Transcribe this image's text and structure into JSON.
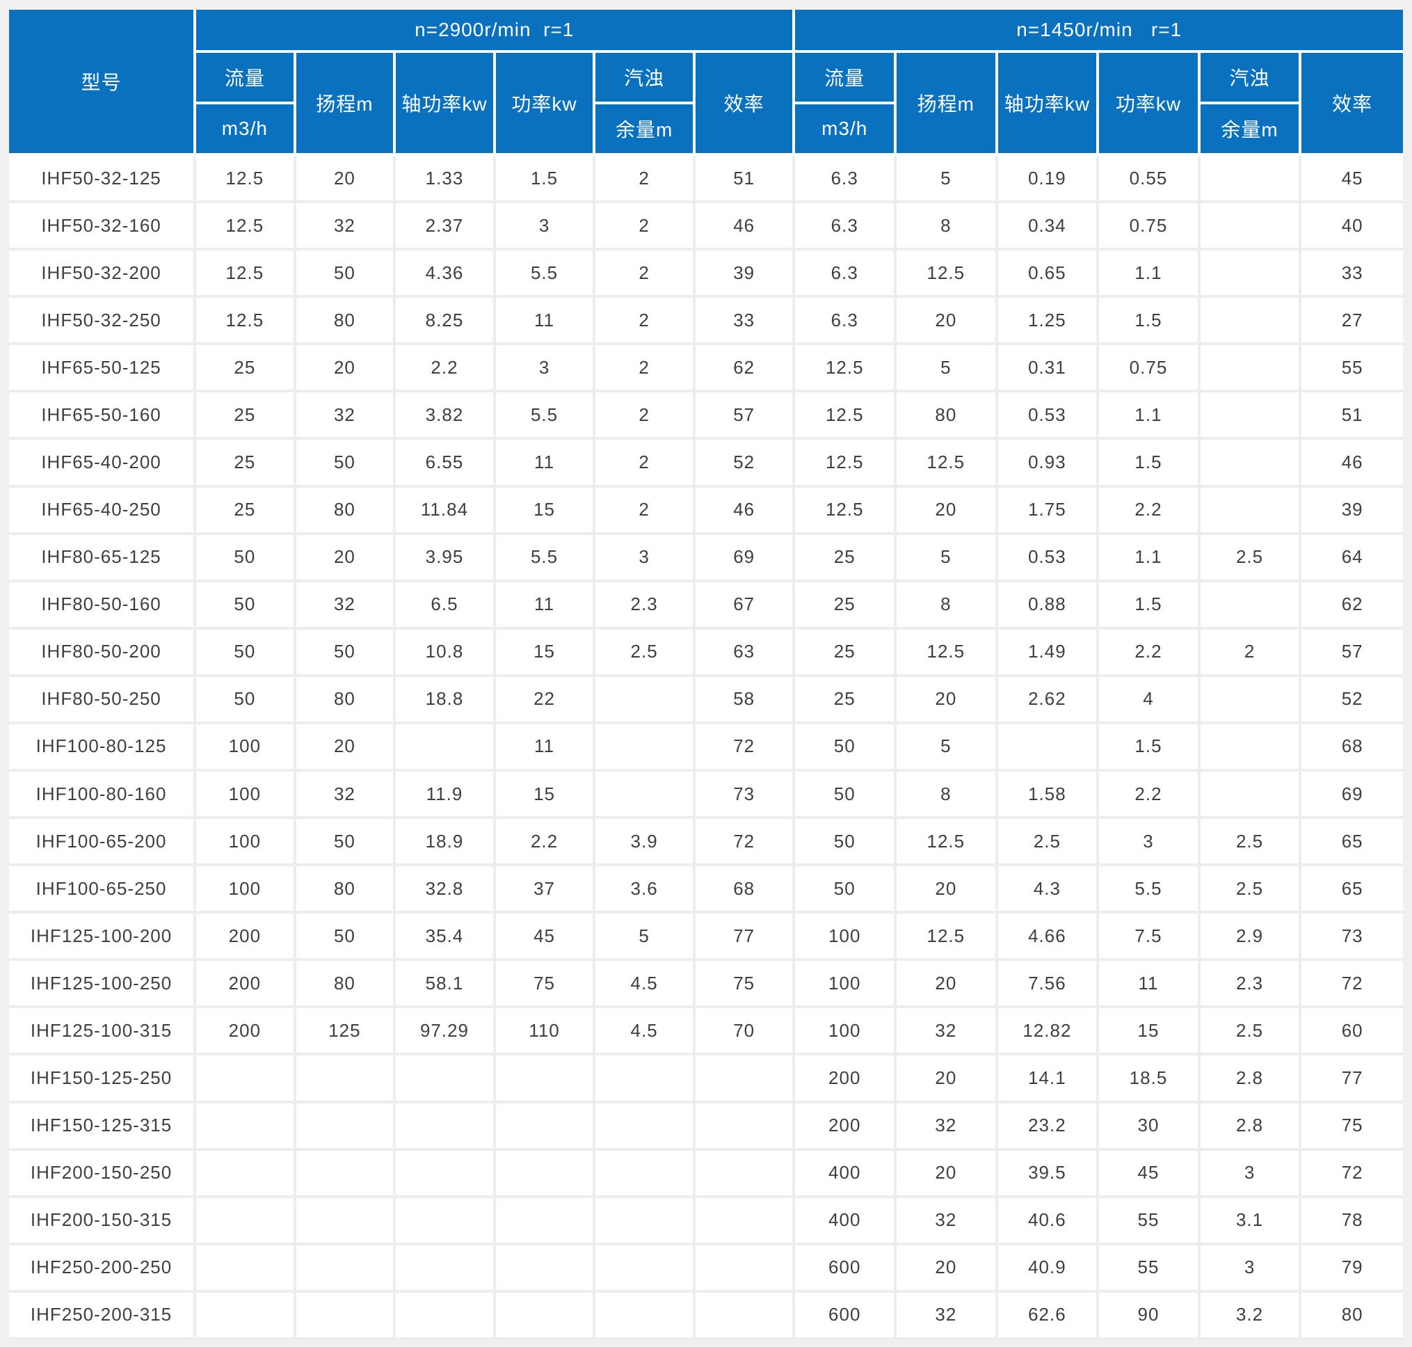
{
  "table": {
    "model_header": "型号",
    "sections": [
      {
        "title": "n=2900r/min  r=1"
      },
      {
        "title": "n=1450r/min   r=1"
      }
    ],
    "labels": {
      "flow": "流量",
      "flow_unit": "m3/h",
      "head": "扬程m",
      "shaft_power": "轴功率kw",
      "power": "功率kw",
      "npsh": "汽浊",
      "npsh_unit": "余量m",
      "efficiency": "效率"
    },
    "rows": [
      [
        "IHF50-32-125",
        "12.5",
        "20",
        "1.33",
        "1.5",
        "2",
        "51",
        "6.3",
        "5",
        "0.19",
        "0.55",
        "",
        "45"
      ],
      [
        "IHF50-32-160",
        "12.5",
        "32",
        "2.37",
        "3",
        "2",
        "46",
        "6.3",
        "8",
        "0.34",
        "0.75",
        "",
        "40"
      ],
      [
        "IHF50-32-200",
        "12.5",
        "50",
        "4.36",
        "5.5",
        "2",
        "39",
        "6.3",
        "12.5",
        "0.65",
        "1.1",
        "",
        "33"
      ],
      [
        "IHF50-32-250",
        "12.5",
        "80",
        "8.25",
        "11",
        "2",
        "33",
        "6.3",
        "20",
        "1.25",
        "1.5",
        "",
        "27"
      ],
      [
        "IHF65-50-125",
        "25",
        "20",
        "2.2",
        "3",
        "2",
        "62",
        "12.5",
        "5",
        "0.31",
        "0.75",
        "",
        "55"
      ],
      [
        "IHF65-50-160",
        "25",
        "32",
        "3.82",
        "5.5",
        "2",
        "57",
        "12.5",
        "80",
        "0.53",
        "1.1",
        "",
        "51"
      ],
      [
        "IHF65-40-200",
        "25",
        "50",
        "6.55",
        "11",
        "2",
        "52",
        "12.5",
        "12.5",
        "0.93",
        "1.5",
        "",
        "46"
      ],
      [
        "IHF65-40-250",
        "25",
        "80",
        "11.84",
        "15",
        "2",
        "46",
        "12.5",
        "20",
        "1.75",
        "2.2",
        "",
        "39"
      ],
      [
        "IHF80-65-125",
        "50",
        "20",
        "3.95",
        "5.5",
        "3",
        "69",
        "25",
        "5",
        "0.53",
        "1.1",
        "2.5",
        "64"
      ],
      [
        "IHF80-50-160",
        "50",
        "32",
        "6.5",
        "11",
        "2.3",
        "67",
        "25",
        "8",
        "0.88",
        "1.5",
        "",
        "62"
      ],
      [
        "IHF80-50-200",
        "50",
        "50",
        "10.8",
        "15",
        "2.5",
        "63",
        "25",
        "12.5",
        "1.49",
        "2.2",
        "2",
        "57"
      ],
      [
        "IHF80-50-250",
        "50",
        "80",
        "18.8",
        "22",
        "",
        "58",
        "25",
        "20",
        "2.62",
        "4",
        "",
        "52"
      ],
      [
        "IHF100-80-125",
        "100",
        "20",
        "",
        "11",
        "",
        "72",
        "50",
        "5",
        "",
        "1.5",
        "",
        "68"
      ],
      [
        "IHF100-80-160",
        "100",
        "32",
        "11.9",
        "15",
        "",
        "73",
        "50",
        "8",
        "1.58",
        "2.2",
        "",
        "69"
      ],
      [
        "IHF100-65-200",
        "100",
        "50",
        "18.9",
        "2.2",
        "3.9",
        "72",
        "50",
        "12.5",
        "2.5",
        "3",
        "2.5",
        "65"
      ],
      [
        "IHF100-65-250",
        "100",
        "80",
        "32.8",
        "37",
        "3.6",
        "68",
        "50",
        "20",
        "4.3",
        "5.5",
        "2.5",
        "65"
      ],
      [
        "IHF125-100-200",
        "200",
        "50",
        "35.4",
        "45",
        "5",
        "77",
        "100",
        "12.5",
        "4.66",
        "7.5",
        "2.9",
        "73"
      ],
      [
        "IHF125-100-250",
        "200",
        "80",
        "58.1",
        "75",
        "4.5",
        "75",
        "100",
        "20",
        "7.56",
        "11",
        "2.3",
        "72"
      ],
      [
        "IHF125-100-315",
        "200",
        "125",
        "97.29",
        "110",
        "4.5",
        "70",
        "100",
        "32",
        "12.82",
        "15",
        "2.5",
        "60"
      ],
      [
        "IHF150-125-250",
        "",
        "",
        "",
        "",
        "",
        "",
        "200",
        "20",
        "14.1",
        "18.5",
        "2.8",
        "77"
      ],
      [
        "IHF150-125-315",
        "",
        "",
        "",
        "",
        "",
        "",
        "200",
        "32",
        "23.2",
        "30",
        "2.8",
        "75"
      ],
      [
        "IHF200-150-250",
        "",
        "",
        "",
        "",
        "",
        "",
        "400",
        "20",
        "39.5",
        "45",
        "3",
        "72"
      ],
      [
        "IHF200-150-315",
        "",
        "",
        "",
        "",
        "",
        "",
        "400",
        "32",
        "40.6",
        "55",
        "3.1",
        "78"
      ],
      [
        "IHF250-200-250",
        "",
        "",
        "",
        "",
        "",
        "",
        "600",
        "20",
        "40.9",
        "55",
        "3",
        "79"
      ],
      [
        "IHF250-200-315",
        "",
        "",
        "",
        "",
        "",
        "",
        "600",
        "32",
        "62.6",
        "90",
        "3.2",
        "80"
      ]
    ]
  },
  "colors": {
    "header_bg": "#0a71be",
    "header_text": "#ffffff",
    "cell_bg": "#ffffff",
    "cell_text": "#3f3f3f",
    "grid": "#ededed",
    "page_bg": "#f0f0f0"
  }
}
